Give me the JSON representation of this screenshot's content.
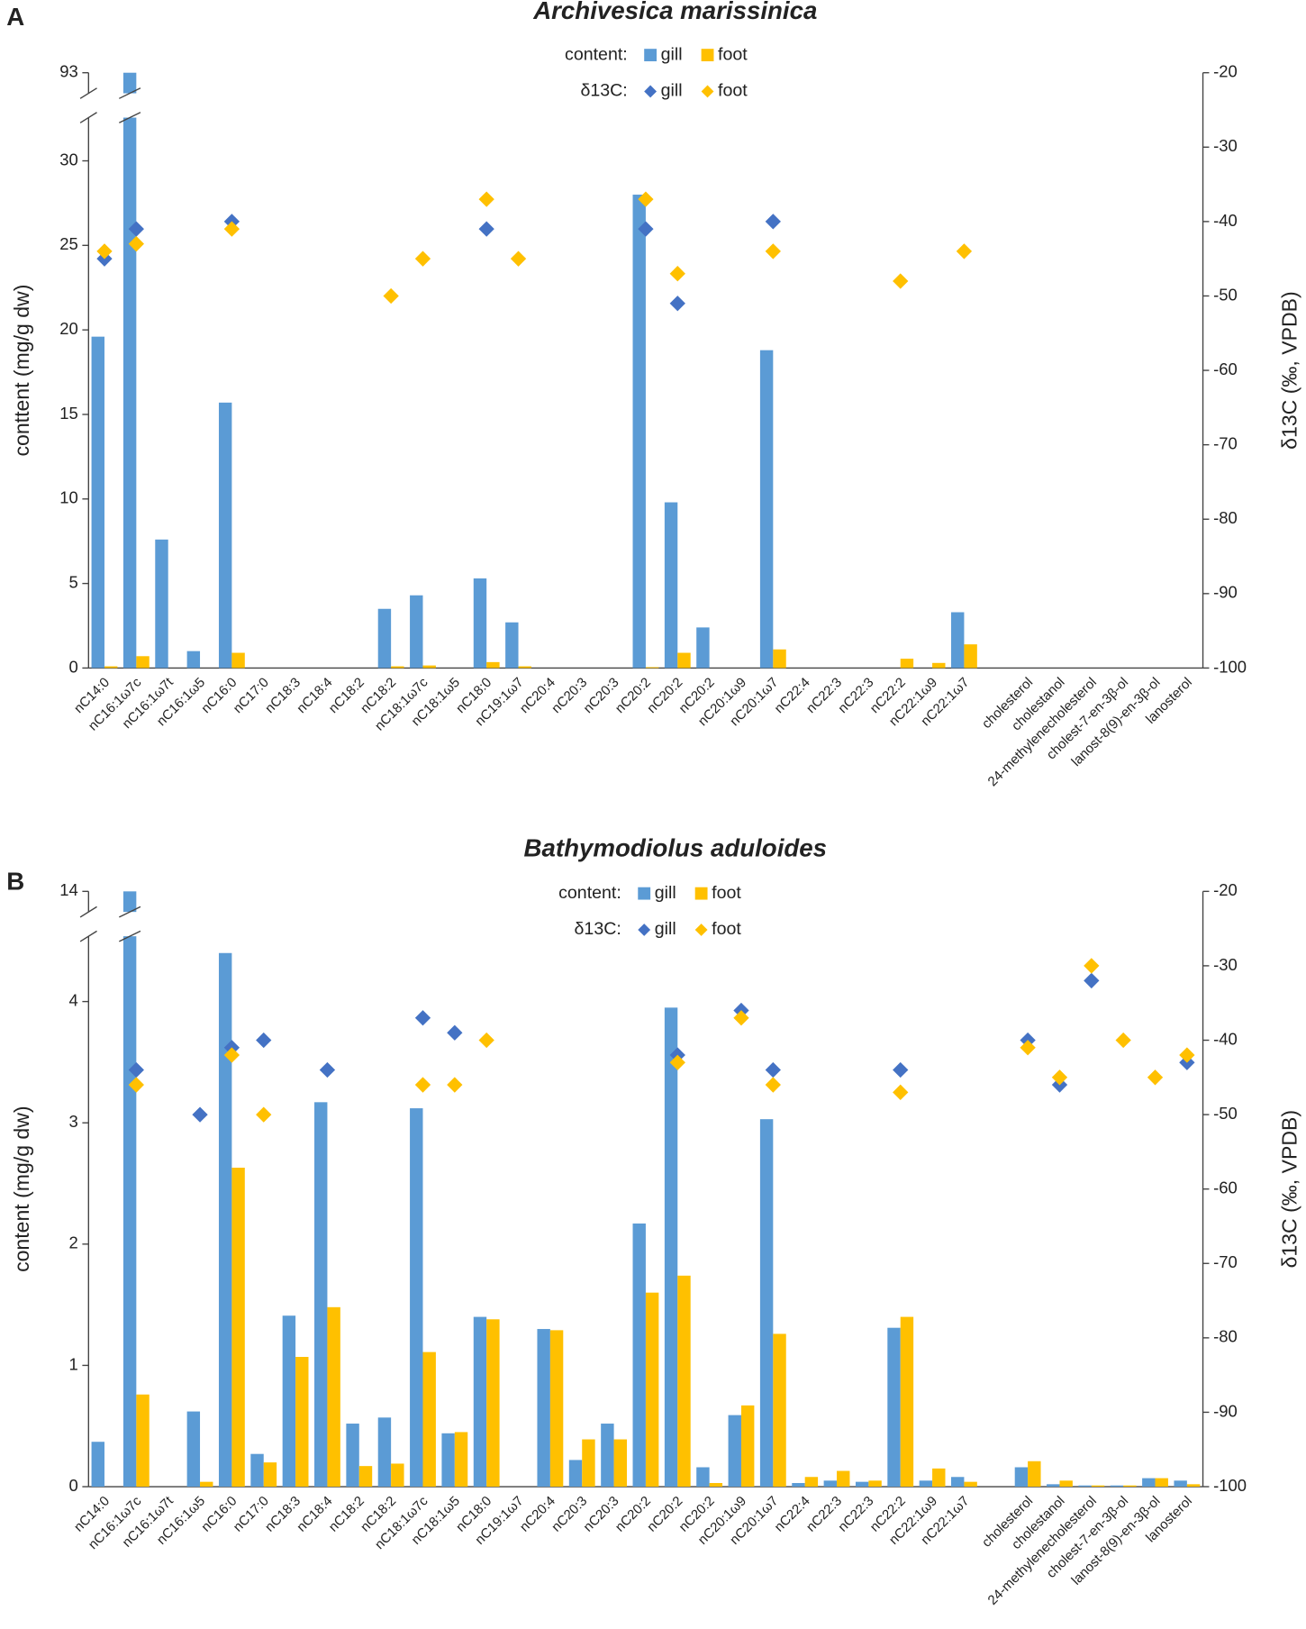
{
  "chart_data": [
    {
      "type": "bar",
      "panel": "A",
      "title": "Archivesica marissinica",
      "ylabel": "conttent (mg/g dw)",
      "y2label": "δ13C (‰, VPDB)",
      "legend_titles": {
        "bar": "content:",
        "scatter": "δ13C:"
      },
      "categories": [
        "nC14:0",
        "nC16:1ω7c",
        "nC16:1ω7t",
        "nC16:1ω5",
        "nC16:0",
        "nC17:0",
        "nC18:3",
        "nC18:4",
        "nC18:2",
        "nC18:2",
        "nC18:1ω7c",
        "nC18:1ω5",
        "nC18:0",
        "nC19:1ω7",
        "nC20:4",
        "nC20:3",
        "nC20:3",
        "nC20:2",
        "nC20:2",
        "nC20:2",
        "nC20:1ω9",
        "nC20:1ω7",
        "nC22:4",
        "nC22:3",
        "nC22:3",
        "nC22:2",
        "nC22:1ω9",
        "nC22:1ω7",
        null,
        "cholesterol",
        "cholestanol",
        "24-methylenecholesterol",
        "cholest-7-en-3β-ol",
        "lanost-8(9)-en-3β-ol",
        "lanosterol"
      ],
      "ylim": [
        0,
        93
      ],
      "ybreak": 33,
      "yticks": [
        0,
        5,
        10,
        15,
        20,
        25,
        30,
        93
      ],
      "y2lim": [
        -100,
        -20
      ],
      "y2ticks": [
        -100,
        -90,
        -80,
        -70,
        -60,
        -50,
        -40,
        -30,
        -20
      ],
      "series": [
        {
          "name": "gill",
          "kind": "bar",
          "color": "#5b9bd5",
          "values": [
            19.6,
            93,
            7.6,
            1.0,
            15.7,
            0,
            0,
            0,
            0,
            3.5,
            4.3,
            0,
            5.3,
            2.7,
            0,
            0,
            0,
            28.0,
            9.8,
            2.4,
            0,
            18.8,
            0,
            0,
            0,
            0,
            0,
            3.3,
            null,
            0,
            0,
            0,
            0,
            0,
            0
          ]
        },
        {
          "name": "foot",
          "kind": "bar",
          "color": "#ffc000",
          "values": [
            0.1,
            0.7,
            0,
            0,
            0.9,
            0,
            0,
            0,
            0,
            0.1,
            0.15,
            0,
            0.35,
            0.1,
            0,
            0,
            0,
            0.05,
            0.9,
            0,
            0,
            1.1,
            0,
            0,
            0,
            0.55,
            0.3,
            1.4,
            null,
            0,
            0,
            0,
            0,
            0,
            0
          ]
        },
        {
          "name": "gill",
          "kind": "scatter",
          "axis": "y2",
          "color": "#4472c4",
          "values": [
            -45,
            -41,
            null,
            null,
            -40,
            null,
            null,
            null,
            null,
            null,
            null,
            null,
            -41,
            null,
            null,
            null,
            null,
            -41,
            -51,
            null,
            null,
            -40,
            null,
            null,
            null,
            null,
            null,
            null,
            null,
            null,
            null,
            null,
            null,
            null,
            null
          ]
        },
        {
          "name": "foot",
          "kind": "scatter",
          "axis": "y2",
          "color": "#ffc000",
          "values": [
            -44,
            -43,
            null,
            null,
            -41,
            null,
            null,
            null,
            null,
            -50,
            -45,
            null,
            -37,
            -45,
            null,
            null,
            null,
            -37,
            -47,
            null,
            null,
            -44,
            null,
            null,
            null,
            -48,
            null,
            -44,
            null,
            null,
            null,
            null,
            null,
            null,
            null
          ]
        }
      ]
    },
    {
      "type": "bar",
      "panel": "B",
      "title": "Bathymodiolus aduloides",
      "ylabel": "content (mg/g dw)",
      "y2label": "δ13C (‰, VPDB)",
      "legend_titles": {
        "bar": "content:",
        "scatter": "δ13C:"
      },
      "categories": [
        "nC14:0",
        "nC16:1ω7c",
        "nC16:1ω7t",
        "nC16:1ω5",
        "nC16:0",
        "nC17:0",
        "nC18:3",
        "nC18:4",
        "nC18:2",
        "nC18:2",
        "nC18:1ω7c",
        "nC18:1ω5",
        "nC18:0",
        "nC19:1ω7",
        "nC20:4",
        "nC20:3",
        "nC20:3",
        "nC20:2",
        "nC20:2",
        "nC20:2",
        "nC20:1ω9",
        "nC20:1ω7",
        "nC22:4",
        "nC22:3",
        "nC22:3",
        "nC22:2",
        "nC22:1ω9",
        "nC22:1ω7",
        null,
        "cholesterol",
        "cholestanol",
        "24-methylenecholesterol",
        "cholest-7-en-3β-ol",
        "lanost-8(9)-en-3β-ol",
        "lanosterol"
      ],
      "ylim": [
        0,
        14
      ],
      "ybreak": 4.6,
      "yticks": [
        0,
        1,
        2,
        3,
        4,
        14
      ],
      "y2lim": [
        -100,
        -20
      ],
      "y2ticks": [
        -100,
        -90,
        -80,
        -70,
        -60,
        -50,
        -40,
        -30,
        -20
      ],
      "series": [
        {
          "name": "gill",
          "kind": "bar",
          "color": "#5b9bd5",
          "values": [
            0.37,
            14,
            0,
            0.62,
            4.4,
            0.27,
            1.41,
            3.17,
            0.52,
            0.57,
            3.12,
            0.44,
            1.4,
            0,
            1.3,
            0.22,
            0.52,
            2.17,
            3.95,
            0.16,
            0.59,
            3.03,
            0.03,
            0.05,
            0.04,
            1.31,
            0.05,
            0.08,
            null,
            0.16,
            0.02,
            0.01,
            0.01,
            0.07,
            0.05
          ]
        },
        {
          "name": "foot",
          "kind": "bar",
          "color": "#ffc000",
          "values": [
            0,
            0.76,
            0,
            0.04,
            2.63,
            0.2,
            1.07,
            1.48,
            0.17,
            0.19,
            1.11,
            0.45,
            1.38,
            0,
            1.29,
            0.39,
            0.39,
            1.6,
            1.74,
            0.03,
            0.67,
            1.26,
            0.08,
            0.13,
            0.05,
            1.4,
            0.15,
            0.04,
            null,
            0.21,
            0.05,
            0.01,
            0.01,
            0.07,
            0.02
          ]
        },
        {
          "name": "gill",
          "kind": "scatter",
          "axis": "y2",
          "color": "#4472c4",
          "values": [
            null,
            -44,
            null,
            -50,
            -41,
            -40,
            null,
            -44,
            null,
            null,
            -37,
            -39,
            null,
            null,
            null,
            null,
            null,
            null,
            -42,
            null,
            -36,
            -44,
            null,
            null,
            null,
            -44,
            null,
            null,
            null,
            -40,
            -46,
            -32,
            null,
            null,
            -43
          ]
        },
        {
          "name": "foot",
          "kind": "scatter",
          "axis": "y2",
          "color": "#ffc000",
          "values": [
            null,
            -46,
            null,
            null,
            -42,
            -50,
            null,
            null,
            null,
            null,
            -46,
            -46,
            -40,
            null,
            null,
            null,
            null,
            null,
            -43,
            null,
            -37,
            -46,
            null,
            null,
            null,
            -47,
            null,
            null,
            null,
            -41,
            -45,
            -30,
            -40,
            -45,
            -42
          ]
        }
      ]
    }
  ]
}
